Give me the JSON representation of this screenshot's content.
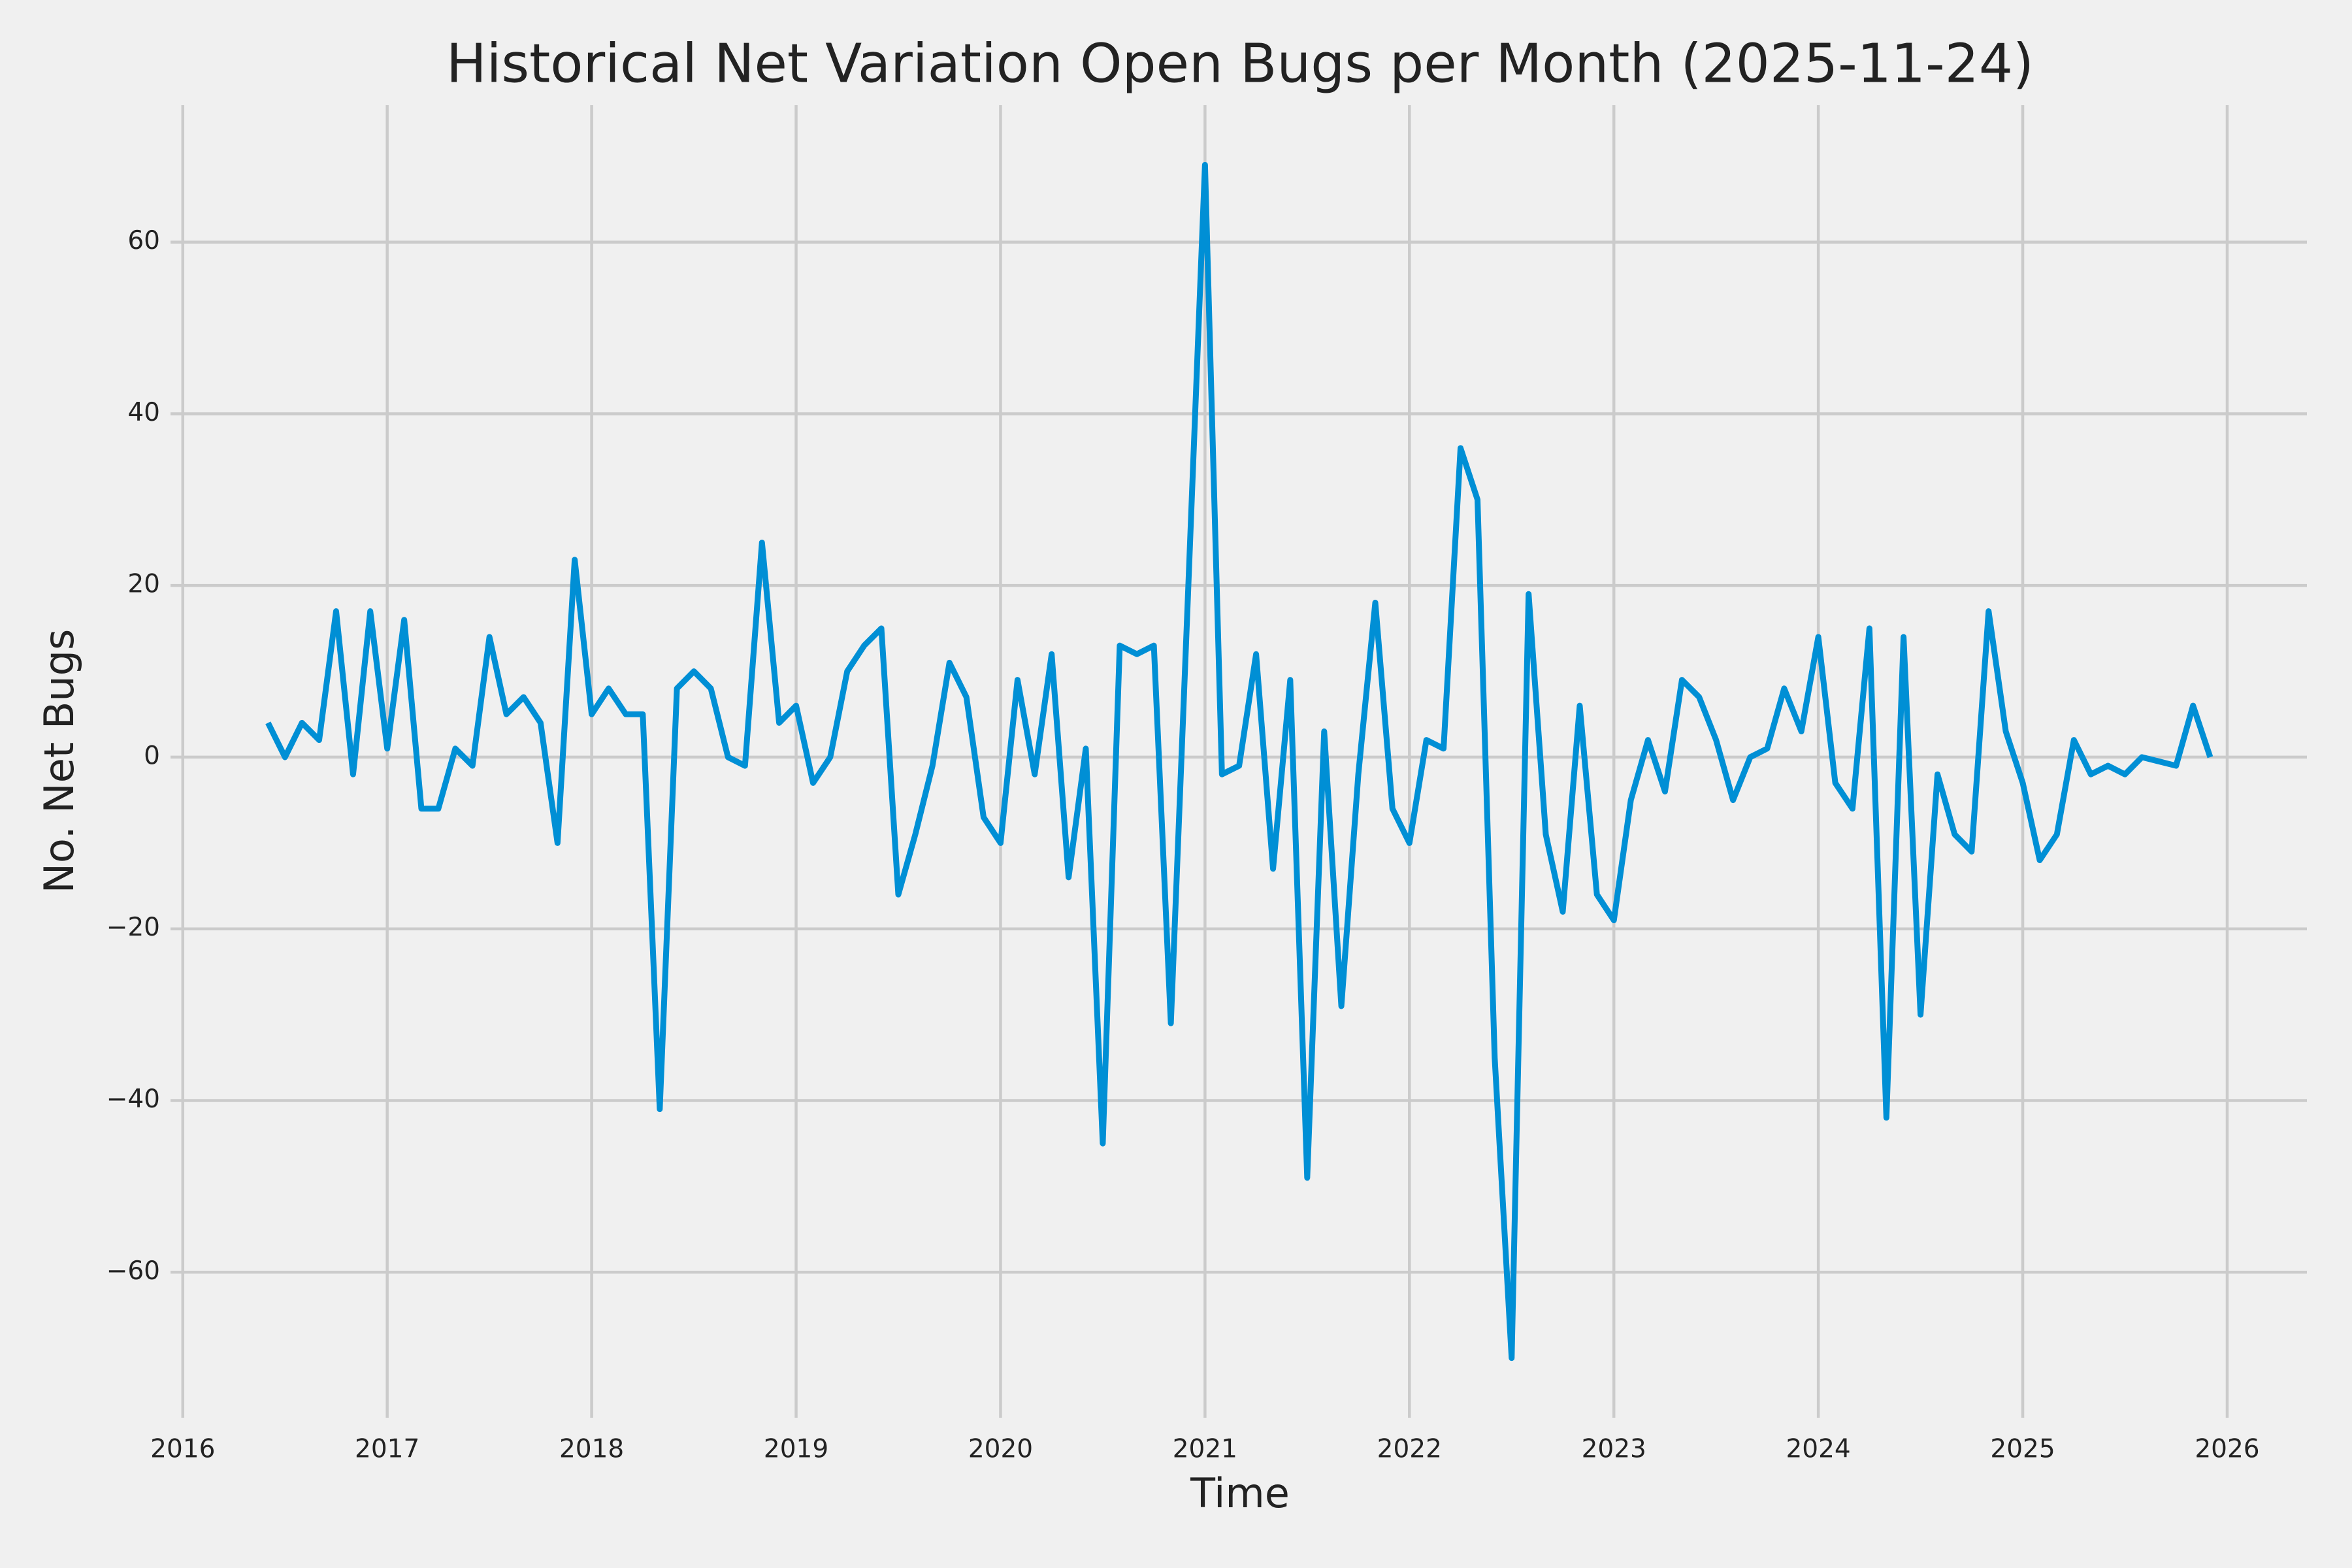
{
  "chart_data": {
    "type": "line",
    "title": "Historical Net Variation Open Bugs per Month (2025-11-24)",
    "x_label": "Time",
    "y_label": "No. Net Bugs",
    "x": [
      2016.417,
      2016.5,
      2016.583,
      2016.667,
      2016.75,
      2016.833,
      2016.917,
      2017.0,
      2017.083,
      2017.167,
      2017.25,
      2017.333,
      2017.417,
      2017.5,
      2017.583,
      2017.667,
      2017.75,
      2017.833,
      2017.917,
      2018.0,
      2018.083,
      2018.167,
      2018.25,
      2018.333,
      2018.417,
      2018.5,
      2018.583,
      2018.667,
      2018.75,
      2018.833,
      2018.917,
      2019.0,
      2019.083,
      2019.167,
      2019.25,
      2019.333,
      2019.417,
      2019.5,
      2019.583,
      2019.667,
      2019.75,
      2019.833,
      2019.917,
      2020.0,
      2020.083,
      2020.167,
      2020.25,
      2020.333,
      2020.417,
      2020.5,
      2020.583,
      2020.667,
      2020.75,
      2020.833,
      2020.917,
      2021.0,
      2021.083,
      2021.167,
      2021.25,
      2021.333,
      2021.417,
      2021.5,
      2021.583,
      2021.667,
      2021.75,
      2021.833,
      2021.917,
      2022.0,
      2022.083,
      2022.167,
      2022.25,
      2022.333,
      2022.417,
      2022.5,
      2022.583,
      2022.667,
      2022.75,
      2022.833,
      2022.917,
      2023.0,
      2023.083,
      2023.167,
      2023.25,
      2023.333,
      2023.417,
      2023.5,
      2023.583,
      2023.667,
      2023.75,
      2023.833,
      2023.917,
      2024.0,
      2024.083,
      2024.167,
      2024.25,
      2024.333,
      2024.417,
      2024.5,
      2024.583,
      2024.667,
      2024.75,
      2024.833,
      2024.917,
      2025.0,
      2025.083,
      2025.167,
      2025.25,
      2025.333,
      2025.417,
      2025.5,
      2025.583,
      2025.667,
      2025.75,
      2025.833,
      2025.917
    ],
    "series": [
      {
        "color": "#008fd5",
        "values": [
          4,
          0,
          4,
          2,
          17,
          -2,
          17,
          1,
          16,
          -6,
          -6,
          1,
          -1,
          14,
          5,
          7,
          4,
          -10,
          23,
          5,
          8,
          5,
          5,
          -41,
          8,
          10,
          8,
          0,
          -1,
          25,
          4,
          6,
          -3,
          0,
          10,
          13,
          15,
          -16,
          -9,
          -1,
          11,
          7,
          -7,
          -10,
          9,
          -2,
          12,
          -14,
          1,
          -45,
          13,
          12,
          13,
          -31,
          19,
          69,
          -2,
          -1,
          12,
          -13,
          9,
          -49,
          3,
          -29,
          -2,
          18,
          -6,
          -10,
          2,
          1,
          36,
          30,
          -35,
          -70,
          19,
          -9,
          -18,
          6,
          -16,
          -19,
          -5,
          2,
          -4,
          9,
          7,
          2,
          -5,
          0,
          1,
          8,
          3,
          14,
          -3,
          -6,
          15,
          -42,
          14,
          -30,
          -2,
          -9,
          -11,
          17,
          3,
          -3,
          -12,
          -9,
          2,
          -2,
          -1,
          -2,
          0,
          -0.5,
          -1,
          6,
          0
        ]
      }
    ],
    "xlim": [
      2015.94,
      2026.39
    ],
    "xticks": [
      2016,
      2017,
      2018,
      2019,
      2020,
      2021,
      2022,
      2023,
      2024,
      2025,
      2026
    ],
    "ylim": [
      -76.95,
      75.95
    ],
    "yticks": [
      {
        "value": -60,
        "label": "−60"
      },
      {
        "value": -40,
        "label": "−40"
      },
      {
        "value": -20,
        "label": "−20"
      },
      0,
      20,
      40,
      60
    ],
    "grid": true
  }
}
